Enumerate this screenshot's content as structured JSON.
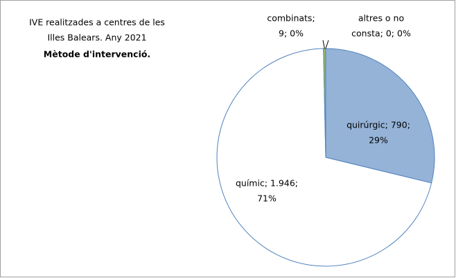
{
  "chart_data": {
    "type": "pie",
    "title": [
      "IVE realitzades  a centres de les",
      "Illes Balears.  Any 2021"
    ],
    "subtitle": "Mètode d'intervenció.",
    "categories": [
      "quirúrgic",
      "químic",
      "combinats",
      "altres o no consta"
    ],
    "values": [
      790,
      1946,
      9,
      0
    ],
    "value_labels": [
      [
        "quirúrgic; 790;",
        "29%"
      ],
      [
        "químic; 1.946;",
        "71%"
      ],
      [
        "combinats;",
        "9; 0%"
      ],
      [
        "altres o no",
        "consta; 0; 0%"
      ]
    ],
    "colors": [
      "#95b3d7",
      "#ffffff",
      "#9bbb59",
      "#8064a2"
    ],
    "edge_color": "#4f81bd"
  }
}
